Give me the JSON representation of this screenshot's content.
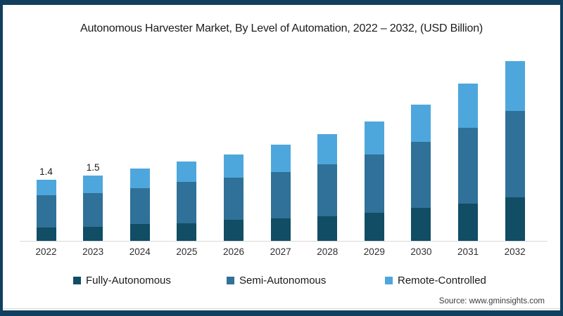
{
  "title": "Autonomous Harvester Market, By Level of Automation, 2022 – 2032, (USD Billion)",
  "source": "Source: www.gminsights.com",
  "frame_color": "#123f5e",
  "axis_line_color": "#d9d9d9",
  "chart_data": {
    "type": "bar",
    "stacked": true,
    "grid": false,
    "legend_position": "bottom",
    "title": "Autonomous Harvester Market, By Level of Automation, 2022 – 2032, (USD Billion)",
    "xlabel": "",
    "ylabel": "",
    "unit": "USD Billion",
    "ylim": [
      0,
      4.5
    ],
    "categories": [
      "2022",
      "2023",
      "2024",
      "2025",
      "2026",
      "2027",
      "2028",
      "2029",
      "2030",
      "2031",
      "2032"
    ],
    "series": [
      {
        "name": "Fully-Autonomous",
        "color": "#114d64",
        "values": [
          0.3,
          0.33,
          0.38,
          0.41,
          0.48,
          0.51,
          0.56,
          0.64,
          0.76,
          0.86,
          1.0
        ]
      },
      {
        "name": "Semi-Autonomous",
        "color": "#2f7198",
        "values": [
          0.74,
          0.77,
          0.82,
          0.94,
          0.96,
          1.07,
          1.2,
          1.34,
          1.5,
          1.73,
          1.97
        ]
      },
      {
        "name": "Remote-Controlled",
        "color": "#4ea7dc",
        "values": [
          0.36,
          0.4,
          0.46,
          0.47,
          0.54,
          0.62,
          0.68,
          0.76,
          0.86,
          1.01,
          1.14
        ]
      }
    ],
    "totals": [
      1.4,
      1.5,
      1.66,
      1.82,
      1.98,
      2.2,
      2.44,
      2.74,
      3.12,
      3.6,
      4.11
    ],
    "point_labels": [
      {
        "category": "2022",
        "label": "1.4"
      },
      {
        "category": "2023",
        "label": "1.5"
      }
    ]
  }
}
